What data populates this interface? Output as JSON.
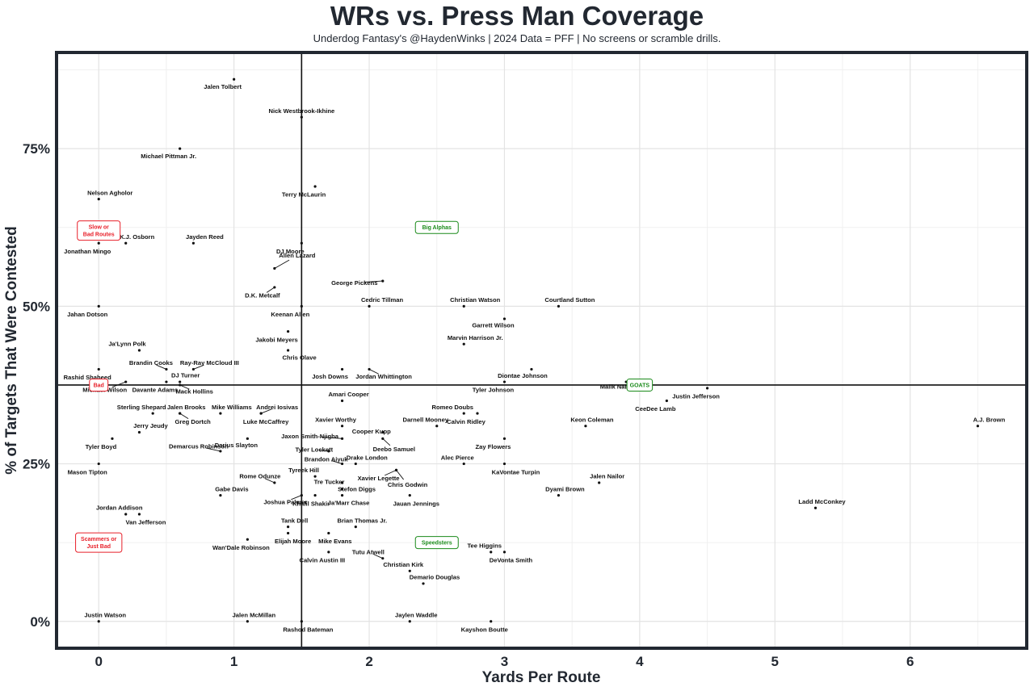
{
  "chart_data": {
    "type": "scatter",
    "title": "WRs vs. Press Man Coverage",
    "subtitle": "Underdog Fantasy's @HaydenWinks | 2024 Data = PFF | No screens or scramble drills.",
    "xlabel": "Yards Per Route",
    "ylabel": "% of Targets That Were Contested",
    "xlim": [
      -0.3,
      6.85
    ],
    "ylim": [
      -0.04,
      0.9
    ],
    "x_ticks": [
      0,
      1,
      2,
      3,
      4,
      5,
      6
    ],
    "y_ticks": [
      0,
      0.25,
      0.5,
      0.75
    ],
    "x_tick_labels": [
      "0",
      "1",
      "2",
      "3",
      "4",
      "5",
      "6"
    ],
    "y_tick_labels": [
      "0%",
      "25%",
      "50%",
      "75%"
    ],
    "grid": true,
    "reference_lines": {
      "x": 1.5,
      "y": 0.375
    },
    "colors": {
      "good": "#1a8a1a",
      "bad": "#e8202a",
      "frame": "#222831",
      "grid": "#e3e3e3"
    },
    "points": [
      {
        "name": "Jalen Tolbert",
        "x": 1.0,
        "y": 0.86
      },
      {
        "name": "Nick Westbrook-Ikhine",
        "x": 1.5,
        "y": 0.8
      },
      {
        "name": "Michael Pittman Jr.",
        "x": 0.6,
        "y": 0.75
      },
      {
        "name": "Terry McLaurin",
        "x": 1.6,
        "y": 0.69
      },
      {
        "name": "Nelson Agholor",
        "x": 0.0,
        "y": 0.67
      },
      {
        "name": "K.J. Osborn",
        "x": 0.2,
        "y": 0.6
      },
      {
        "name": "Jonathan Mingo",
        "x": 0.0,
        "y": 0.6
      },
      {
        "name": "Jayden Reed",
        "x": 0.7,
        "y": 0.6
      },
      {
        "name": "DJ Moore",
        "x": 1.5,
        "y": 0.6
      },
      {
        "name": "Allen Lazard",
        "x": 1.3,
        "y": 0.56
      },
      {
        "name": "D.K. Metcalf",
        "x": 1.3,
        "y": 0.53
      },
      {
        "name": "George Pickens",
        "x": 2.1,
        "y": 0.54
      },
      {
        "name": "Cedric Tillman",
        "x": 2.0,
        "y": 0.5
      },
      {
        "name": "Christian Watson",
        "x": 2.7,
        "y": 0.5
      },
      {
        "name": "Courtland Sutton",
        "x": 3.4,
        "y": 0.5
      },
      {
        "name": "Garrett Wilson",
        "x": 3.0,
        "y": 0.48
      },
      {
        "name": "Jahan Dotson",
        "x": 0.0,
        "y": 0.5
      },
      {
        "name": "Keenan Allen",
        "x": 1.5,
        "y": 0.5
      },
      {
        "name": "Jakobi Meyers",
        "x": 1.4,
        "y": 0.46
      },
      {
        "name": "Marvin Harrison Jr.",
        "x": 2.7,
        "y": 0.44
      },
      {
        "name": "Ja'Lynn Polk",
        "x": 0.3,
        "y": 0.43
      },
      {
        "name": "Chris Olave",
        "x": 1.4,
        "y": 0.43
      },
      {
        "name": "Brandin Cooks",
        "x": 0.5,
        "y": 0.4
      },
      {
        "name": "Ray-Ray McCloud III",
        "x": 0.7,
        "y": 0.4
      },
      {
        "name": "Josh Downs",
        "x": 1.8,
        "y": 0.4
      },
      {
        "name": "Jordan Whittington",
        "x": 2.0,
        "y": 0.4
      },
      {
        "name": "Diontae Johnson",
        "x": 3.2,
        "y": 0.4
      },
      {
        "name": "Rashid Shaheed",
        "x": 0.0,
        "y": 0.4
      },
      {
        "name": "DJ Turner",
        "x": 0.6,
        "y": 0.38
      },
      {
        "name": "Michael Wilson",
        "x": 0.2,
        "y": 0.38
      },
      {
        "name": "Davante Adams",
        "x": 0.5,
        "y": 0.38
      },
      {
        "name": "Mack Hollins",
        "x": 0.6,
        "y": 0.375
      },
      {
        "name": "Tyler Johnson",
        "x": 3.0,
        "y": 0.38
      },
      {
        "name": "Malik Nabers",
        "x": 3.9,
        "y": 0.38
      },
      {
        "name": "Justin Jefferson",
        "x": 4.5,
        "y": 0.37
      },
      {
        "name": "CeeDee Lamb",
        "x": 4.2,
        "y": 0.35
      },
      {
        "name": "Amari Cooper",
        "x": 1.8,
        "y": 0.35
      },
      {
        "name": "Sterling Shepard",
        "x": 0.4,
        "y": 0.33
      },
      {
        "name": "Jalen Brooks",
        "x": 0.6,
        "y": 0.33
      },
      {
        "name": "Mike Williams",
        "x": 0.9,
        "y": 0.33
      },
      {
        "name": "Andrei Iosivas",
        "x": 1.2,
        "y": 0.33
      },
      {
        "name": "Greg Dortch",
        "x": 0.6,
        "y": 0.33
      },
      {
        "name": "Luke McCaffrey",
        "x": 1.2,
        "y": 0.33
      },
      {
        "name": "Romeo Doubs",
        "x": 2.7,
        "y": 0.33
      },
      {
        "name": "Calvin Ridley",
        "x": 2.8,
        "y": 0.33
      },
      {
        "name": "Darnell Mooney",
        "x": 2.5,
        "y": 0.31
      },
      {
        "name": "Keon Coleman",
        "x": 3.6,
        "y": 0.31
      },
      {
        "name": "A.J. Brown",
        "x": 6.5,
        "y": 0.31
      },
      {
        "name": "Xavier Worthy",
        "x": 1.8,
        "y": 0.31
      },
      {
        "name": "Jerry Jeudy",
        "x": 0.3,
        "y": 0.3
      },
      {
        "name": "Cooper Kupp",
        "x": 2.1,
        "y": 0.3
      },
      {
        "name": "Jaxon Smith-Njigba",
        "x": 1.8,
        "y": 0.29
      },
      {
        "name": "Deebo Samuel",
        "x": 2.1,
        "y": 0.29
      },
      {
        "name": "Tyler Boyd",
        "x": 0.1,
        "y": 0.29
      },
      {
        "name": "Darius Slayton",
        "x": 1.1,
        "y": 0.29
      },
      {
        "name": "Zay Flowers",
        "x": 3.0,
        "y": 0.29
      },
      {
        "name": "Tyler Lockett",
        "x": 1.7,
        "y": 0.27
      },
      {
        "name": "Demarcus Robinson",
        "x": 0.9,
        "y": 0.27
      },
      {
        "name": "Brandon Aiyuk",
        "x": 1.8,
        "y": 0.25
      },
      {
        "name": "Drake London",
        "x": 1.9,
        "y": 0.25
      },
      {
        "name": "Alec Pierce",
        "x": 2.7,
        "y": 0.25
      },
      {
        "name": "KaVontae Turpin",
        "x": 3.0,
        "y": 0.25
      },
      {
        "name": "Mason Tipton",
        "x": 0.0,
        "y": 0.25
      },
      {
        "name": "Tyreek Hill",
        "x": 1.6,
        "y": 0.23
      },
      {
        "name": "Xavier Legette",
        "x": 2.2,
        "y": 0.24
      },
      {
        "name": "Chris Godwin",
        "x": 2.2,
        "y": 0.24
      },
      {
        "name": "Jalen Nailor",
        "x": 3.7,
        "y": 0.22
      },
      {
        "name": "Rome Odunze",
        "x": 1.3,
        "y": 0.22
      },
      {
        "name": "Tre Tucker",
        "x": 1.8,
        "y": 0.22
      },
      {
        "name": "Stefon Diggs",
        "x": 1.8,
        "y": 0.21
      },
      {
        "name": "Gabe Davis",
        "x": 0.9,
        "y": 0.2
      },
      {
        "name": "Joshua Palmer",
        "x": 1.5,
        "y": 0.2
      },
      {
        "name": "Dyami Brown",
        "x": 3.4,
        "y": 0.2
      },
      {
        "name": "Ja'Marr Chase",
        "x": 1.8,
        "y": 0.2
      },
      {
        "name": "Khalil Shakir",
        "x": 1.6,
        "y": 0.2
      },
      {
        "name": "Jauan Jennings",
        "x": 2.3,
        "y": 0.2
      },
      {
        "name": "Ladd McConkey",
        "x": 5.3,
        "y": 0.18
      },
      {
        "name": "Jordan Addison",
        "x": 0.2,
        "y": 0.17
      },
      {
        "name": "Van Jefferson",
        "x": 0.3,
        "y": 0.17
      },
      {
        "name": "Tank Dell",
        "x": 1.4,
        "y": 0.15
      },
      {
        "name": "Brian Thomas Jr.",
        "x": 1.9,
        "y": 0.15
      },
      {
        "name": "Elijah Moore",
        "x": 1.4,
        "y": 0.14
      },
      {
        "name": "Mike Evans",
        "x": 1.7,
        "y": 0.14
      },
      {
        "name": "Wan'Dale Robinson",
        "x": 1.1,
        "y": 0.13
      },
      {
        "name": "Tee Higgins",
        "x": 2.9,
        "y": 0.11
      },
      {
        "name": "DeVonta Smith",
        "x": 3.0,
        "y": 0.11
      },
      {
        "name": "Calvin Austin III",
        "x": 1.7,
        "y": 0.11
      },
      {
        "name": "Tutu Atwell",
        "x": 2.1,
        "y": 0.1
      },
      {
        "name": "Christian Kirk",
        "x": 2.3,
        "y": 0.08
      },
      {
        "name": "Demario Douglas",
        "x": 2.4,
        "y": 0.06
      },
      {
        "name": "Justin Watson",
        "x": 0.0,
        "y": 0.0
      },
      {
        "name": "Jalen McMillan",
        "x": 1.1,
        "y": 0.0
      },
      {
        "name": "Rashod Bateman",
        "x": 1.5,
        "y": 0.0
      },
      {
        "name": "Jaylen Waddle",
        "x": 2.3,
        "y": 0.0
      },
      {
        "name": "Kayshon Boutte",
        "x": 2.9,
        "y": 0.0
      }
    ],
    "annotations": [
      {
        "lines": [
          "Slow or",
          "Bad Routes"
        ],
        "x": 0.0,
        "y": 0.62,
        "color": "#e8202a"
      },
      {
        "lines": [
          "Bad"
        ],
        "x": 0.0,
        "y": 0.375,
        "color": "#e8202a"
      },
      {
        "lines": [
          "Scammers or",
          "Just Bad"
        ],
        "x": 0.0,
        "y": 0.125,
        "color": "#e8202a"
      },
      {
        "lines": [
          "Big Alphas"
        ],
        "x": 2.5,
        "y": 0.625,
        "color": "#1a8a1a"
      },
      {
        "lines": [
          "GOATS"
        ],
        "x": 4.0,
        "y": 0.375,
        "color": "#1a8a1a"
      },
      {
        "lines": [
          "Speedsters"
        ],
        "x": 2.5,
        "y": 0.125,
        "color": "#1a8a1a"
      }
    ]
  }
}
